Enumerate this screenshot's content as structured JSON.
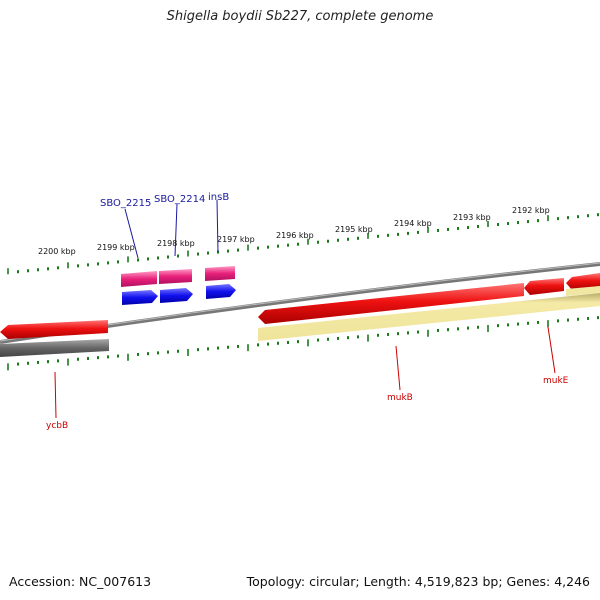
{
  "header": {
    "title": "Shigella boydii Sb227, complete genome"
  },
  "footer": {
    "accession": "Accession: NC_007613",
    "topology": "Topology: circular; Length: 4,519,823 bp; Genes: 4,246"
  },
  "scale": {
    "labels": [
      "2200 kbp",
      "2199 kbp",
      "2198 kbp",
      "2197 kbp",
      "2196 kbp",
      "2195 kbp",
      "2194 kbp",
      "2193 kbp",
      "2192 kbp"
    ]
  },
  "gene_labels": {
    "top": [
      "SBO_2215",
      "SBO_2214",
      "insB"
    ],
    "bottom": [
      "ycbB",
      "mukB",
      "mukE"
    ]
  },
  "colors": {
    "red_feature": "#ee1111",
    "pink_feature": "#e8207a",
    "blue_feature": "#1010ee",
    "gray_band": "#666666",
    "yellow_band": "#f2e8a0",
    "tick": "#1a7a1a",
    "red_label": "#cc0000",
    "blue_label": "#1a1aa0"
  }
}
